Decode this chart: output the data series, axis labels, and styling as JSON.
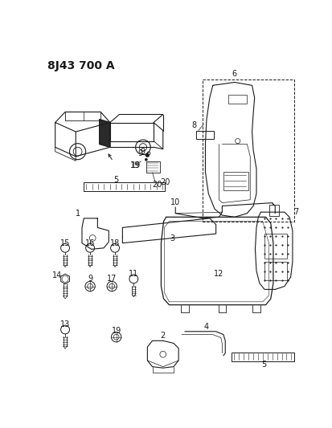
{
  "title": "8J43 700 A",
  "title_fontsize": 10,
  "bg_color": "#ffffff",
  "line_color": "#1a1a1a",
  "fig_width": 4.13,
  "fig_height": 5.33,
  "dpi": 100
}
